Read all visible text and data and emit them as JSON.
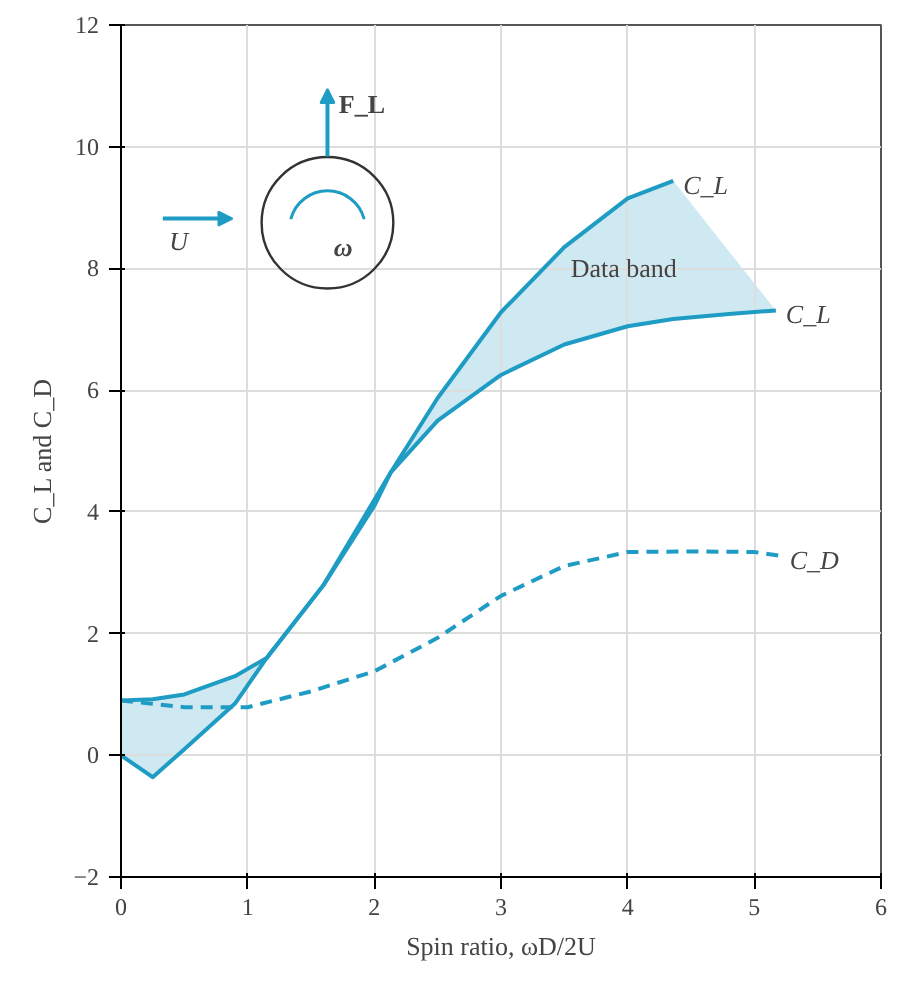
{
  "chart_data": {
    "type": "line",
    "xlabel": "Spin ratio, ωD/2U",
    "ylabel": "C_L and C_D",
    "xlim": [
      0,
      6
    ],
    "ylim": [
      -2,
      12
    ],
    "xticks": [
      0,
      1,
      2,
      3,
      4,
      5,
      6
    ],
    "yticks": [
      -2,
      0,
      2,
      4,
      6,
      8,
      10,
      12
    ],
    "grid": true,
    "legend": false,
    "series": [
      {
        "name": "C_L",
        "color": "#1f9cc4",
        "line_style": "solid",
        "x": [
          0,
          0.25,
          0.5,
          0.9,
          1.15,
          1.6,
          2.13,
          2.5,
          3,
          3.5,
          4,
          4.36,
          4.8,
          5.17
        ],
        "values": [
          0.9,
          0.92,
          1.0,
          1.3,
          1.6,
          2.8,
          4.65,
          5.5,
          6.25,
          6.75,
          7.05,
          7.17,
          7.25,
          7.31
        ],
        "lower": [
          0,
          -0.36,
          0.1,
          0.85,
          1.6,
          2.8,
          4.65,
          5.5,
          6.25,
          6.75,
          7.05,
          7.17,
          7.25,
          7.31
        ],
        "upper": [
          0.9,
          0.92,
          1.0,
          1.3,
          1.6,
          2.8,
          4.65,
          5.87,
          7.28,
          8.35,
          9.15,
          9.44,
          8.28,
          7.31
        ]
      },
      {
        "name": "C_L",
        "color": "#1f9cc4",
        "line_style": "solid",
        "x": [
          0,
          0.25,
          0.5,
          0.9,
          1.15,
          1.6,
          2.0,
          2.13,
          2.5,
          3,
          3.5,
          4,
          4.36
        ],
        "values": [
          0,
          -0.36,
          0.1,
          0.85,
          1.6,
          2.8,
          4.1,
          4.65,
          5.87,
          7.28,
          8.35,
          9.15,
          9.44
        ]
      },
      {
        "name": "C_D",
        "color": "#1f9cc4",
        "line_style": "dashed",
        "x": [
          0,
          0.5,
          1,
          1.5,
          2,
          2.5,
          3,
          3.5,
          4,
          4.5,
          5,
          5.2
        ],
        "values": [
          0.9,
          0.79,
          0.79,
          1.05,
          1.38,
          1.93,
          2.62,
          3.11,
          3.34,
          3.35,
          3.34,
          3.28
        ]
      }
    ],
    "annotations": [
      "Data band",
      "F_L",
      "U",
      "ω"
    ]
  }
}
